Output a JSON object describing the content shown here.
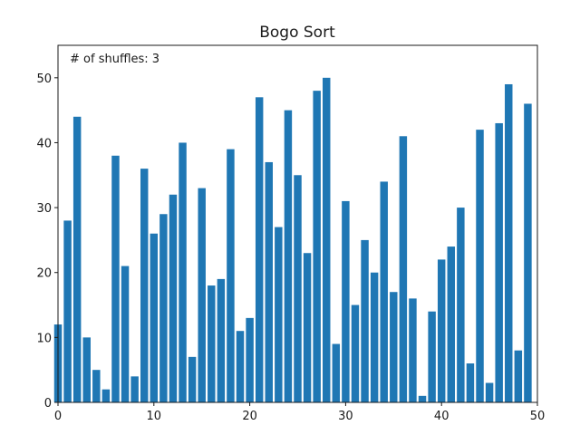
{
  "chart_data": {
    "type": "bar",
    "title": "Bogo Sort",
    "annotation": "# of shuffles: 3",
    "xlabel": "",
    "ylabel": "",
    "xlim": [
      0,
      50
    ],
    "ylim": [
      0,
      55
    ],
    "xticks": [
      0,
      10,
      20,
      30,
      40,
      50
    ],
    "yticks": [
      0,
      10,
      20,
      30,
      40,
      50
    ],
    "bar_color": "#1f77b4",
    "grid": false,
    "x": [
      0,
      1,
      2,
      3,
      4,
      5,
      6,
      7,
      8,
      9,
      10,
      11,
      12,
      13,
      14,
      15,
      16,
      17,
      18,
      19,
      20,
      21,
      22,
      23,
      24,
      25,
      26,
      27,
      28,
      29,
      30,
      31,
      32,
      33,
      34,
      35,
      36,
      37,
      38,
      39,
      40,
      41,
      42,
      43,
      44,
      45,
      46,
      47,
      48,
      49
    ],
    "values": [
      12,
      28,
      44,
      10,
      5,
      2,
      38,
      21,
      4,
      36,
      26,
      29,
      32,
      40,
      7,
      33,
      18,
      19,
      39,
      11,
      13,
      47,
      37,
      27,
      45,
      35,
      23,
      48,
      50,
      9,
      31,
      15,
      25,
      20,
      34,
      17,
      41,
      16,
      1,
      14,
      22,
      24,
      30,
      6,
      42,
      3,
      43,
      49,
      8,
      46
    ]
  }
}
